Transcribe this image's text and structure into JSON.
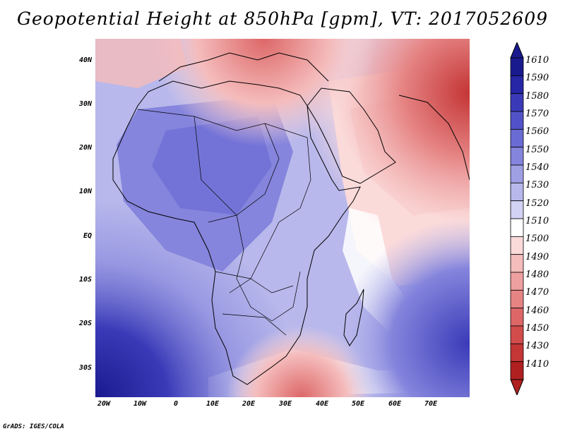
{
  "title": "Geopotential Height at 850hPa [gpm], VT: 2017052609",
  "footer": "GrADS: IGES/COLA",
  "map": {
    "region": "Africa and Arabian Peninsula",
    "lat_labels": [
      "40N",
      "30N",
      "20N",
      "10N",
      "EQ",
      "10S",
      "20S",
      "30S"
    ],
    "lon_labels": [
      "20W",
      "10W",
      "0",
      "10E",
      "20E",
      "30E",
      "40E",
      "50E",
      "60E",
      "70E"
    ]
  },
  "colorbar": {
    "levels": [
      "1610",
      "1590",
      "1580",
      "1570",
      "1560",
      "1550",
      "1540",
      "1530",
      "1520",
      "1510",
      "1500",
      "1490",
      "1480",
      "1470",
      "1460",
      "1450",
      "1430",
      "1410"
    ],
    "colors": [
      "#1a1a8f",
      "#2626a6",
      "#3a3ab8",
      "#5252c8",
      "#6b6bd4",
      "#8585dd",
      "#9f9fe4",
      "#b8b8ec",
      "#d2d2f4",
      "#ffffff",
      "#fbdada",
      "#f5bcbc",
      "#ee9f9f",
      "#e68484",
      "#dd6767",
      "#d24c4c",
      "#c43535",
      "#b02020"
    ]
  }
}
